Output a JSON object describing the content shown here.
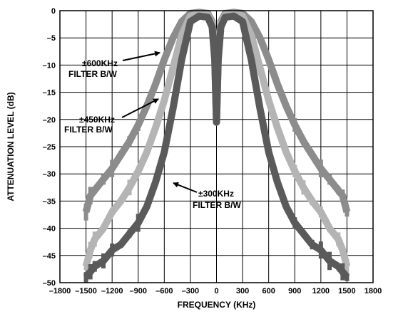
{
  "chart_data": {
    "type": "line",
    "title": "",
    "xlabel": "FREQUENCY (KHz)",
    "ylabel": "ATTENUATION LEVEL (dB)",
    "xlim": [
      -1800,
      1800
    ],
    "ylim": [
      -50,
      0
    ],
    "xticks": [
      -1800,
      -1500,
      -1200,
      -900,
      -600,
      -300,
      0,
      300,
      600,
      900,
      1200,
      1500,
      1800
    ],
    "yticks": [
      0,
      -5,
      -10,
      -15,
      -20,
      -25,
      -30,
      -35,
      -40,
      -45,
      -50
    ],
    "xtick_labels": [
      "–1800",
      "–1500",
      "–1200",
      "–900",
      "–600",
      "–300",
      "0",
      "300",
      "600",
      "900",
      "1200",
      "1500",
      "1800"
    ],
    "ytick_labels": [
      "0",
      "–5",
      "–10",
      "–15",
      "–20",
      "–25",
      "–30",
      "–35",
      "–40",
      "–45",
      "–50"
    ],
    "grid": true,
    "legend": "none",
    "series": [
      {
        "label": "±600KHz FILTER B/W",
        "color": "#8c8c8c",
        "x": [
          -1500,
          -1450,
          -1400,
          -1300,
          -1200,
          -1100,
          -1000,
          -900,
          -800,
          -700,
          -600,
          -500,
          -400,
          -300,
          -200,
          -100,
          -50,
          -20,
          0,
          20,
          50,
          100,
          200,
          300,
          400,
          500,
          600,
          700,
          800,
          900,
          1000,
          1100,
          1200,
          1300,
          1400,
          1450,
          1500
        ],
        "y": [
          -37,
          -34,
          -33,
          -31,
          -29,
          -26.5,
          -24,
          -21,
          -17.5,
          -13.5,
          -9,
          -5,
          -2,
          -0.5,
          -0.3,
          -0.5,
          -2,
          -8,
          -20.5,
          -8,
          -2,
          -0.5,
          -0.3,
          -0.5,
          -2,
          -5,
          -9,
          -13.5,
          -17.5,
          -21,
          -24,
          -26.5,
          -29,
          -31,
          -33,
          -34,
          -37
        ]
      },
      {
        "label": "±450KHz FILTER B/W",
        "color": "#b4b4b4",
        "x": [
          -1500,
          -1450,
          -1400,
          -1300,
          -1200,
          -1100,
          -1000,
          -900,
          -800,
          -700,
          -600,
          -500,
          -400,
          -300,
          -200,
          -100,
          -50,
          -20,
          0,
          20,
          50,
          100,
          200,
          300,
          400,
          500,
          600,
          700,
          800,
          900,
          1000,
          1100,
          1200,
          1300,
          1400,
          1450,
          1500
        ],
        "y": [
          -47,
          -44,
          -42,
          -40,
          -37,
          -35,
          -32.5,
          -29.5,
          -26,
          -21.5,
          -16.5,
          -10.5,
          -4.5,
          -1,
          -0.5,
          -0.8,
          -2.5,
          -8,
          -20.5,
          -8,
          -2.5,
          -0.8,
          -0.5,
          -1,
          -4.5,
          -10.5,
          -16.5,
          -21.5,
          -26,
          -29.5,
          -32.5,
          -35,
          -37,
          -40,
          -42,
          -44,
          -47
        ]
      },
      {
        "label": "±300KHz FILTER B/W",
        "color": "#5a5a5a",
        "x": [
          -1500,
          -1450,
          -1400,
          -1300,
          -1200,
          -1100,
          -1000,
          -900,
          -800,
          -700,
          -600,
          -500,
          -400,
          -300,
          -200,
          -100,
          -50,
          -20,
          0,
          20,
          50,
          100,
          200,
          300,
          400,
          500,
          600,
          700,
          800,
          900,
          1000,
          1100,
          1200,
          1300,
          1400,
          1450,
          1500
        ],
        "y": [
          -49,
          -48,
          -47,
          -46,
          -44,
          -43,
          -41,
          -39,
          -36,
          -31.5,
          -26,
          -18,
          -9,
          -2,
          -1,
          -1.2,
          -3,
          -9,
          -20.5,
          -9,
          -3,
          -1.2,
          -1,
          -2,
          -9,
          -18,
          -26,
          -31.5,
          -36,
          -39,
          -41,
          -43,
          -44,
          -46,
          -47,
          -48,
          -49
        ]
      }
    ],
    "annotations": [
      {
        "lines": [
          "±600KHz",
          "FILTER B/W"
        ],
        "series": 0
      },
      {
        "lines": [
          "±450KHz",
          "FILTER B/W"
        ],
        "series": 1
      },
      {
        "lines": [
          "±300KHz",
          "FILTER B/W"
        ],
        "series": 2
      }
    ]
  }
}
